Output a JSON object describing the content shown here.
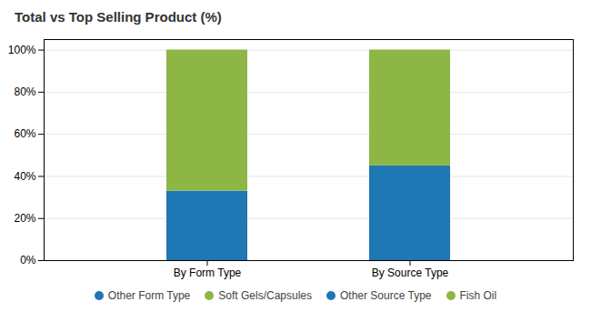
{
  "chart_data": {
    "type": "bar",
    "title": "Total vs Top Selling Product (%)",
    "categories": [
      "By Form Type",
      "By Source Type"
    ],
    "stacked": true,
    "series": [
      {
        "name": "Other Form Type",
        "color": "#1F77B4",
        "values": [
          33,
          null
        ]
      },
      {
        "name": "Soft Gels/Capsules",
        "color": "#8DB645",
        "values": [
          67,
          null
        ]
      },
      {
        "name": "Other Source Type",
        "color": "#1F77B4",
        "values": [
          null,
          45
        ]
      },
      {
        "name": "Fish Oil",
        "color": "#8DB645",
        "values": [
          null,
          55
        ]
      }
    ],
    "ylim": [
      0,
      105
    ],
    "yticks": [
      {
        "value": 0,
        "label": "0%"
      },
      {
        "value": 20,
        "label": "20%"
      },
      {
        "value": 40,
        "label": "40%"
      },
      {
        "value": 60,
        "label": "60%"
      },
      {
        "value": 80,
        "label": "80%"
      },
      {
        "value": 100,
        "label": "100%"
      }
    ],
    "grid": true,
    "legend": "bottom"
  }
}
